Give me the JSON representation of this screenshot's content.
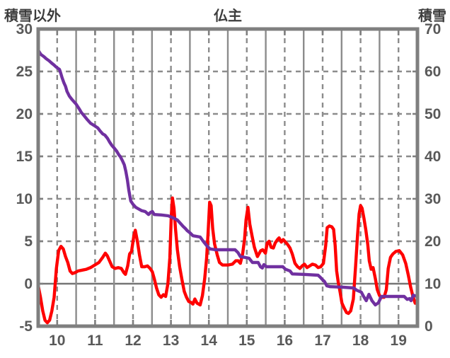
{
  "header": {
    "left_axis_title": "積雪以外",
    "station_title": "仏主",
    "right_axis_title": "積雪"
  },
  "colors": {
    "temperature_series": "#ff0000",
    "snow_series": "#7030a0",
    "grid": "#8c8c8c",
    "frame": "#7f7f7f",
    "zero_line": "#757575",
    "label_text": "#595959",
    "title_text": "#3d3d3d"
  },
  "chart_data": {
    "type": "line",
    "title": "仏主",
    "x_axis": {
      "ticks": [
        10,
        11,
        12,
        13,
        14,
        15,
        16,
        17,
        18,
        19
      ],
      "range": [
        10,
        20
      ],
      "label": ""
    },
    "left_axis": {
      "title": "積雪以外",
      "ticks": [
        30,
        25,
        20,
        15,
        10,
        5,
        0,
        -5
      ],
      "range": [
        -5,
        30
      ]
    },
    "right_axis": {
      "title": "積雪",
      "ticks": [
        70,
        60,
        50,
        40,
        30,
        20,
        10,
        0
      ],
      "range": [
        0,
        70
      ]
    },
    "grid": {
      "h_dashed_left_values": [
        25,
        20,
        15,
        10,
        5
      ],
      "zero_left_value": 0,
      "v_solid_days": [
        11,
        12,
        13,
        14,
        15,
        16,
        17,
        18,
        19
      ],
      "v_dashed_half_days": [
        10.5,
        11.5,
        12.5,
        13.5,
        14.5,
        15.5,
        16.5,
        17.5,
        18.5,
        19.5
      ]
    },
    "legend": "none",
    "series": [
      {
        "name": "積雪以外",
        "axis": "left",
        "color": "#ff0000",
        "points": [
          [
            10.0,
            -0.2
          ],
          [
            10.06,
            -1.6
          ],
          [
            10.12,
            -3.2
          ],
          [
            10.18,
            -4.3
          ],
          [
            10.24,
            -4.6
          ],
          [
            10.3,
            -4.3
          ],
          [
            10.36,
            -3.2
          ],
          [
            10.42,
            -1.6
          ],
          [
            10.48,
            1.8
          ],
          [
            10.54,
            3.9
          ],
          [
            10.6,
            4.4
          ],
          [
            10.66,
            4.1
          ],
          [
            10.72,
            3.2
          ],
          [
            10.78,
            2.5
          ],
          [
            10.84,
            1.5
          ],
          [
            10.9,
            1.2
          ],
          [
            10.97,
            1.3
          ],
          [
            11.05,
            1.5
          ],
          [
            11.16,
            1.6
          ],
          [
            11.27,
            1.7
          ],
          [
            11.38,
            1.9
          ],
          [
            11.49,
            2.2
          ],
          [
            11.6,
            2.5
          ],
          [
            11.7,
            3.1
          ],
          [
            11.77,
            3.6
          ],
          [
            11.82,
            3.3
          ],
          [
            11.88,
            2.7
          ],
          [
            11.95,
            2.0
          ],
          [
            12.03,
            1.8
          ],
          [
            12.11,
            1.9
          ],
          [
            12.19,
            1.8
          ],
          [
            12.26,
            1.3
          ],
          [
            12.3,
            1.1
          ],
          [
            12.36,
            2.1
          ],
          [
            12.41,
            3.5
          ],
          [
            12.46,
            3.8
          ],
          [
            12.52,
            5.6
          ],
          [
            12.56,
            6.3
          ],
          [
            12.62,
            4.9
          ],
          [
            12.67,
            3.4
          ],
          [
            12.73,
            2.0
          ],
          [
            12.81,
            2.0
          ],
          [
            12.88,
            2.1
          ],
          [
            12.95,
            1.8
          ],
          [
            13.01,
            1.4
          ],
          [
            13.06,
            0.6
          ],
          [
            13.12,
            -0.5
          ],
          [
            13.18,
            -1.3
          ],
          [
            13.24,
            -1.6
          ],
          [
            13.3,
            -1.3
          ],
          [
            13.36,
            -1.5
          ],
          [
            13.42,
            0.0
          ],
          [
            13.47,
            3.0
          ],
          [
            13.51,
            8.0
          ],
          [
            13.54,
            10.1
          ],
          [
            13.58,
            8.9
          ],
          [
            13.62,
            6.5
          ],
          [
            13.67,
            4.0
          ],
          [
            13.73,
            2.0
          ],
          [
            13.79,
            0.5
          ],
          [
            13.85,
            -0.9
          ],
          [
            13.91,
            -1.6
          ],
          [
            13.97,
            -2.1
          ],
          [
            14.03,
            -2.2
          ],
          [
            14.08,
            -2.4
          ],
          [
            14.13,
            -1.8
          ],
          [
            14.19,
            -2.3
          ],
          [
            14.27,
            -2.5
          ],
          [
            14.33,
            -1.4
          ],
          [
            14.39,
            0.6
          ],
          [
            14.44,
            3.0
          ],
          [
            14.48,
            6.0
          ],
          [
            14.52,
            9.6
          ],
          [
            14.56,
            9.2
          ],
          [
            14.6,
            6.5
          ],
          [
            14.65,
            4.7
          ],
          [
            14.72,
            3.4
          ],
          [
            14.78,
            2.5
          ],
          [
            14.86,
            2.2
          ],
          [
            15.0,
            2.2
          ],
          [
            15.12,
            2.3
          ],
          [
            15.21,
            2.7
          ],
          [
            15.27,
            2.7
          ],
          [
            15.33,
            2.4
          ],
          [
            15.39,
            3.5
          ],
          [
            15.44,
            5.2
          ],
          [
            15.48,
            7.5
          ],
          [
            15.53,
            9.0
          ],
          [
            15.58,
            7.0
          ],
          [
            15.64,
            5.6
          ],
          [
            15.7,
            4.3
          ],
          [
            15.78,
            3.2
          ],
          [
            15.87,
            3.9
          ],
          [
            15.92,
            4.0
          ],
          [
            15.99,
            3.6
          ],
          [
            16.04,
            4.8
          ],
          [
            16.09,
            5.0
          ],
          [
            16.14,
            4.3
          ],
          [
            16.2,
            4.2
          ],
          [
            16.25,
            4.8
          ],
          [
            16.31,
            5.2
          ],
          [
            16.35,
            5.4
          ],
          [
            16.41,
            4.9
          ],
          [
            16.46,
            5.2
          ],
          [
            16.52,
            4.9
          ],
          [
            16.58,
            4.6
          ],
          [
            16.64,
            4.2
          ],
          [
            16.7,
            3.5
          ],
          [
            16.77,
            2.4
          ],
          [
            16.84,
            2.0
          ],
          [
            16.9,
            1.8
          ],
          [
            16.96,
            2.1
          ],
          [
            17.02,
            2.3
          ],
          [
            17.09,
            1.9
          ],
          [
            17.16,
            2.1
          ],
          [
            17.23,
            2.3
          ],
          [
            17.31,
            2.2
          ],
          [
            17.38,
            1.9
          ],
          [
            17.45,
            2.0
          ],
          [
            17.52,
            2.4
          ],
          [
            17.58,
            4.5
          ],
          [
            17.62,
            6.6
          ],
          [
            17.68,
            6.8
          ],
          [
            17.74,
            6.7
          ],
          [
            17.79,
            6.4
          ],
          [
            17.83,
            4.5
          ],
          [
            17.87,
            1.5
          ],
          [
            17.91,
            0.2
          ],
          [
            17.96,
            -1.0
          ],
          [
            18.01,
            -2.3
          ],
          [
            18.07,
            -2.9
          ],
          [
            18.13,
            -3.4
          ],
          [
            18.18,
            -3.5
          ],
          [
            18.24,
            -3.2
          ],
          [
            18.31,
            -1.8
          ],
          [
            18.37,
            2.1
          ],
          [
            18.42,
            5.7
          ],
          [
            18.46,
            8.2
          ],
          [
            18.5,
            9.2
          ],
          [
            18.54,
            8.9
          ],
          [
            18.59,
            7.7
          ],
          [
            18.64,
            6.3
          ],
          [
            18.69,
            4.6
          ],
          [
            18.73,
            2.7
          ],
          [
            18.78,
            1.7
          ],
          [
            18.83,
            1.9
          ],
          [
            18.89,
            0.6
          ],
          [
            18.94,
            -0.7
          ],
          [
            19.0,
            -1.4
          ],
          [
            19.06,
            -1.6
          ],
          [
            19.12,
            -1.6
          ],
          [
            19.18,
            -0.7
          ],
          [
            19.23,
            1.8
          ],
          [
            19.29,
            3.1
          ],
          [
            19.35,
            3.5
          ],
          [
            19.43,
            3.8
          ],
          [
            19.52,
            3.9
          ],
          [
            19.61,
            3.4
          ],
          [
            19.69,
            2.4
          ],
          [
            19.76,
            1.0
          ],
          [
            19.82,
            -0.4
          ],
          [
            19.88,
            -1.5
          ],
          [
            19.94,
            -2.3
          ]
        ]
      },
      {
        "name": "積雪",
        "axis": "right",
        "color": "#7030a0",
        "points": [
          [
            10.0,
            65
          ],
          [
            10.07,
            64
          ],
          [
            10.15,
            63.5
          ],
          [
            10.21,
            63
          ],
          [
            10.29,
            62.5
          ],
          [
            10.35,
            62
          ],
          [
            10.42,
            61.5
          ],
          [
            10.48,
            61
          ],
          [
            10.56,
            60.5
          ],
          [
            10.58,
            60
          ],
          [
            10.63,
            58.5
          ],
          [
            10.68,
            57.3
          ],
          [
            10.72,
            56.5
          ],
          [
            10.76,
            55.3
          ],
          [
            10.82,
            54.2
          ],
          [
            10.89,
            53.4
          ],
          [
            10.95,
            52.8
          ],
          [
            11.0,
            52.3
          ],
          [
            11.08,
            51.2
          ],
          [
            11.14,
            50.3
          ],
          [
            11.19,
            49.8
          ],
          [
            11.29,
            48.7
          ],
          [
            11.38,
            47.8
          ],
          [
            11.47,
            47.3
          ],
          [
            11.57,
            46.7
          ],
          [
            11.64,
            45.9
          ],
          [
            11.7,
            45.3
          ],
          [
            11.76,
            45.0
          ],
          [
            11.83,
            44.2
          ],
          [
            11.88,
            43.4
          ],
          [
            11.94,
            42.6
          ],
          [
            12.0,
            42.0
          ],
          [
            12.07,
            41.2
          ],
          [
            12.13,
            40.3
          ],
          [
            12.16,
            40.0
          ],
          [
            12.22,
            39.0
          ],
          [
            12.27,
            38.0
          ],
          [
            12.31,
            36.5
          ],
          [
            12.35,
            34.5
          ],
          [
            12.39,
            32.0
          ],
          [
            12.44,
            29.5
          ],
          [
            12.5,
            28.7
          ],
          [
            12.57,
            28.0
          ],
          [
            12.67,
            27.5
          ],
          [
            12.73,
            27.2
          ],
          [
            12.82,
            27.0
          ],
          [
            12.91,
            26.3
          ],
          [
            12.96,
            26.8
          ],
          [
            13.01,
            27.0
          ],
          [
            13.06,
            26.3
          ],
          [
            13.24,
            26.2
          ],
          [
            13.43,
            26.0
          ],
          [
            13.56,
            25.5
          ],
          [
            13.67,
            25.0
          ],
          [
            13.77,
            24.0
          ],
          [
            13.82,
            23.5
          ],
          [
            13.88,
            23.0
          ],
          [
            13.93,
            22.5
          ],
          [
            14.0,
            22.0
          ],
          [
            14.08,
            21.3
          ],
          [
            14.27,
            21.0
          ],
          [
            14.35,
            20.0
          ],
          [
            14.44,
            19.0
          ],
          [
            14.53,
            18.2
          ],
          [
            14.68,
            18.0
          ],
          [
            15.19,
            18.0
          ],
          [
            15.27,
            17.3
          ],
          [
            15.33,
            16.4
          ],
          [
            15.45,
            16.2
          ],
          [
            15.56,
            16.0
          ],
          [
            15.65,
            15.0
          ],
          [
            15.8,
            15.0
          ],
          [
            15.86,
            14.0
          ],
          [
            15.91,
            13.7
          ],
          [
            15.95,
            14.5
          ],
          [
            16.02,
            14.0
          ],
          [
            16.45,
            14.0
          ],
          [
            16.52,
            13.4
          ],
          [
            16.64,
            13.0
          ],
          [
            16.7,
            12.3
          ],
          [
            17.0,
            12.2
          ],
          [
            17.38,
            12.0
          ],
          [
            17.44,
            11.5
          ],
          [
            17.49,
            11.0
          ],
          [
            17.55,
            10.5
          ],
          [
            17.61,
            9.5
          ],
          [
            17.7,
            9.3
          ],
          [
            18.0,
            9.2
          ],
          [
            18.32,
            9.0
          ],
          [
            18.39,
            8.5
          ],
          [
            18.52,
            8.0
          ],
          [
            18.58,
            7.0
          ],
          [
            18.65,
            6.0
          ],
          [
            18.72,
            7.5
          ],
          [
            18.8,
            6.0
          ],
          [
            18.89,
            5.0
          ],
          [
            18.97,
            5.5
          ],
          [
            19.05,
            7.0
          ],
          [
            19.3,
            7.0
          ],
          [
            19.65,
            7.0
          ],
          [
            19.73,
            6.3
          ],
          [
            19.79,
            6.5
          ],
          [
            19.83,
            6.0
          ],
          [
            19.89,
            7.3
          ],
          [
            19.99,
            7.0
          ]
        ]
      }
    ]
  }
}
